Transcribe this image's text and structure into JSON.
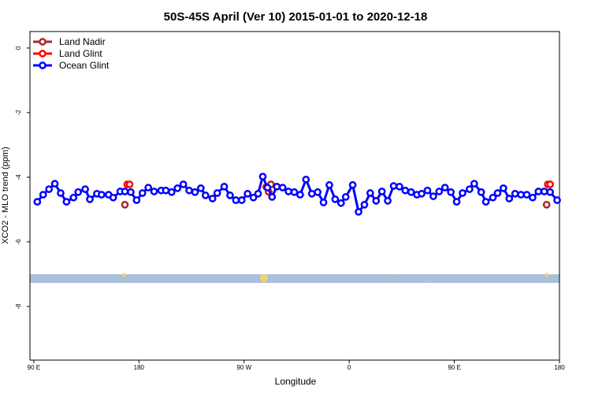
{
  "chart_data": {
    "type": "line",
    "title": "50S-45S April (Ver 10)   2015-01-01 to 2020-12-18",
    "x_label": "Longitude",
    "y_label": "XCO2 - MLO trend (ppm)",
    "xlim": [
      86.7,
      540
    ],
    "ylim": [
      -9.66,
      0.51
    ],
    "xticks": [
      {
        "value": 90,
        "label": "90 E"
      },
      {
        "value": 180,
        "label": "180"
      },
      {
        "value": 270,
        "label": "90 W"
      },
      {
        "value": 360,
        "label": "0"
      },
      {
        "value": 450,
        "label": "90 E"
      },
      {
        "value": 540,
        "label": "180"
      }
    ],
    "yticks": [
      0,
      -2,
      -4,
      -6,
      -8
    ],
    "legend": "top-left",
    "series": [
      {
        "name": "Land Nadir",
        "color": "#a52a2a",
        "x": [
          168,
          293,
          529
        ],
        "values": [
          -4.85,
          -4.22,
          -4.85
        ]
      },
      {
        "name": "Land Glint",
        "color": "#ff0000",
        "x": [
          170,
          172,
          289,
          291,
          530,
          532
        ],
        "values": [
          -4.22,
          -4.22,
          -4.3,
          -4.45,
          -4.22,
          -4.22
        ]
      },
      {
        "name": "Ocean Glint",
        "color": "#0000ff",
        "x": [
          93,
          98,
          103,
          108,
          113,
          118,
          124,
          128,
          134,
          138,
          144,
          148,
          154,
          158,
          164,
          168,
          173,
          178,
          183,
          188,
          193,
          199,
          203,
          208,
          213,
          218,
          223,
          228,
          233,
          237,
          243,
          247,
          253,
          258,
          263,
          268,
          273,
          278,
          282,
          286,
          290,
          294,
          298,
          303,
          308,
          313,
          318,
          323,
          328,
          333,
          338,
          343,
          348,
          353,
          357,
          363,
          368,
          373,
          378,
          383,
          388,
          393,
          398,
          403,
          408,
          413,
          418,
          422,
          427,
          432,
          437,
          442,
          447,
          452,
          457,
          463,
          467,
          473,
          477,
          483,
          487,
          492,
          497,
          502,
          507,
          512,
          517,
          522,
          527,
          532,
          538
        ],
        "values": [
          -4.76,
          -4.54,
          -4.37,
          -4.2,
          -4.49,
          -4.76,
          -4.63,
          -4.46,
          -4.37,
          -4.68,
          -4.51,
          -4.54,
          -4.54,
          -4.63,
          -4.44,
          -4.44,
          -4.46,
          -4.71,
          -4.49,
          -4.32,
          -4.44,
          -4.41,
          -4.41,
          -4.46,
          -4.34,
          -4.22,
          -4.41,
          -4.46,
          -4.34,
          -4.56,
          -4.66,
          -4.49,
          -4.29,
          -4.56,
          -4.71,
          -4.71,
          -4.51,
          -4.63,
          -4.51,
          -3.98,
          -4.32,
          -4.61,
          -4.29,
          -4.32,
          -4.44,
          -4.46,
          -4.54,
          -4.07,
          -4.51,
          -4.46,
          -4.78,
          -4.24,
          -4.68,
          -4.8,
          -4.61,
          -4.24,
          -5.07,
          -4.85,
          -4.49,
          -4.73,
          -4.44,
          -4.73,
          -4.27,
          -4.29,
          -4.41,
          -4.46,
          -4.54,
          -4.51,
          -4.41,
          -4.59,
          -4.44,
          -4.32,
          -4.46,
          -4.76,
          -4.49,
          -4.37,
          -4.2,
          -4.46,
          -4.76,
          -4.63,
          -4.49,
          -4.34,
          -4.66,
          -4.51,
          -4.54,
          -4.54,
          -4.63,
          -4.44,
          -4.44,
          -4.46,
          -4.71
        ]
      }
    ]
  }
}
